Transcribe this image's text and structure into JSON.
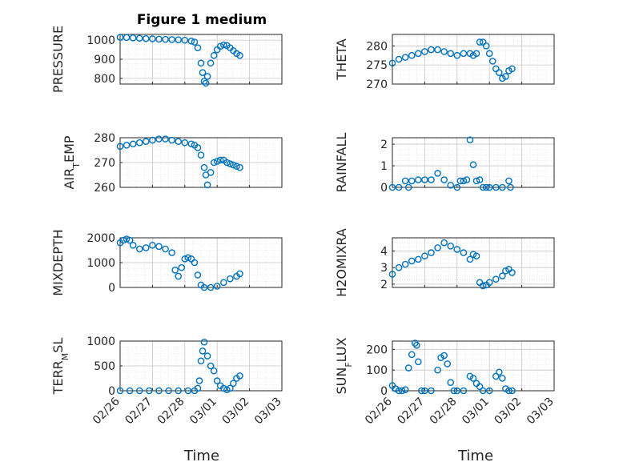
{
  "figure": {
    "title": "Figure 1 medium",
    "xlabel": "Time",
    "date_ticks": [
      "02/26",
      "02/27",
      "02/28",
      "03/01",
      "03/02",
      "03/03"
    ],
    "marker_color": "#0072BD",
    "grid_color": "#d9d9d9"
  },
  "chart_data": [
    {
      "type": "scatter",
      "ylabel": "PRESSURE",
      "ylim": [
        770,
        1030
      ],
      "yticks": [
        800,
        900,
        1000
      ],
      "x": [
        0,
        0.2,
        0.4,
        0.6,
        0.8,
        1.0,
        1.2,
        1.4,
        1.6,
        1.8,
        2.0,
        2.2,
        2.3,
        2.4,
        2.5,
        2.55,
        2.6,
        2.65,
        2.7,
        2.8,
        2.9,
        3.0,
        3.1,
        3.2,
        3.3,
        3.4,
        3.5,
        3.6,
        3.7
      ],
      "y": [
        1015,
        1014,
        1012,
        1010,
        1008,
        1007,
        1005,
        1004,
        1003,
        1002,
        1000,
        995,
        990,
        960,
        880,
        830,
        785,
        775,
        810,
        880,
        920,
        950,
        968,
        975,
        972,
        960,
        945,
        930,
        920
      ]
    },
    {
      "type": "scatter",
      "ylabel": "THETA",
      "ylim": [
        270,
        283
      ],
      "yticks": [
        270,
        275,
        280
      ],
      "x": [
        0,
        0.2,
        0.4,
        0.6,
        0.8,
        1.0,
        1.2,
        1.4,
        1.6,
        1.8,
        2.0,
        2.2,
        2.4,
        2.5,
        2.6,
        2.7,
        2.8,
        2.9,
        3.0,
        3.1,
        3.2,
        3.3,
        3.4,
        3.5,
        3.6,
        3.7
      ],
      "y": [
        275.5,
        276.5,
        277,
        277.5,
        278,
        278.5,
        279,
        279,
        278.5,
        278,
        277.5,
        278,
        278,
        277.5,
        278,
        281,
        281,
        280,
        278,
        276,
        274,
        273,
        271.5,
        272,
        273.5,
        274
      ]
    },
    {
      "type": "scatter",
      "ylabel": "AIR_TEMP",
      "ylim": [
        260,
        280
      ],
      "yticks": [
        260,
        270,
        280
      ],
      "x": [
        0,
        0.2,
        0.4,
        0.6,
        0.8,
        1.0,
        1.2,
        1.4,
        1.6,
        1.8,
        2.0,
        2.2,
        2.3,
        2.4,
        2.5,
        2.6,
        2.65,
        2.7,
        2.8,
        2.9,
        3.0,
        3.1,
        3.2,
        3.3,
        3.4,
        3.5,
        3.6,
        3.7
      ],
      "y": [
        276.5,
        277,
        277.5,
        278,
        278.5,
        279,
        279.5,
        279.5,
        279,
        278.5,
        278,
        277.5,
        277,
        276,
        273,
        268,
        265,
        261,
        266,
        270,
        270.5,
        271,
        271,
        270,
        269.5,
        269,
        268.5,
        268
      ]
    },
    {
      "type": "scatter",
      "ylabel": "RAINFALL",
      "ylim": [
        0,
        2.3
      ],
      "yticks": [
        0,
        1,
        2
      ],
      "x": [
        0,
        0.2,
        0.4,
        0.5,
        0.6,
        0.8,
        1.0,
        1.2,
        1.4,
        1.6,
        1.8,
        2.0,
        2.1,
        2.2,
        2.3,
        2.4,
        2.5,
        2.6,
        2.7,
        2.8,
        2.9,
        3.0,
        3.2,
        3.4,
        3.6,
        3.65
      ],
      "y": [
        0,
        0,
        0.3,
        0,
        0.3,
        0.35,
        0.35,
        0.35,
        0.65,
        0.35,
        0.1,
        0,
        0.3,
        0.3,
        0.35,
        2.2,
        1.05,
        0.3,
        0.35,
        0,
        0,
        0,
        0,
        0,
        0.3,
        0
      ]
    },
    {
      "type": "scatter",
      "ylabel": "MIXDEPTH",
      "ylim": [
        0,
        2000
      ],
      "yticks": [
        0,
        1000,
        2000
      ],
      "x": [
        0,
        0.1,
        0.2,
        0.3,
        0.4,
        0.6,
        0.8,
        1.0,
        1.2,
        1.4,
        1.6,
        1.7,
        1.8,
        1.9,
        2.0,
        2.1,
        2.2,
        2.3,
        2.4,
        2.5,
        2.6,
        2.8,
        3.0,
        3.2,
        3.4,
        3.6,
        3.7
      ],
      "y": [
        1800,
        1900,
        1950,
        1900,
        1700,
        1550,
        1600,
        1700,
        1650,
        1550,
        1400,
        700,
        450,
        800,
        1150,
        1200,
        1150,
        1000,
        500,
        100,
        0,
        0,
        50,
        200,
        350,
        450,
        550
      ]
    },
    {
      "type": "scatter",
      "ylabel": "H2OMIXRA",
      "ylim": [
        1.8,
        4.8
      ],
      "yticks": [
        2,
        3,
        4
      ],
      "x": [
        0,
        0.2,
        0.4,
        0.6,
        0.8,
        1.0,
        1.2,
        1.4,
        1.6,
        1.8,
        2.0,
        2.2,
        2.4,
        2.5,
        2.6,
        2.7,
        2.8,
        2.9,
        3.0,
        3.2,
        3.4,
        3.5,
        3.6,
        3.7
      ],
      "y": [
        2.6,
        3.0,
        3.2,
        3.4,
        3.5,
        3.7,
        3.9,
        4.2,
        4.5,
        4.3,
        4.1,
        3.9,
        3.5,
        3.8,
        3.7,
        2.1,
        1.9,
        1.95,
        2.1,
        2.3,
        2.5,
        2.8,
        2.9,
        2.7
      ]
    },
    {
      "type": "scatter",
      "ylabel": "TERR_MSL",
      "ylim": [
        0,
        1000
      ],
      "yticks": [
        0,
        500,
        1000
      ],
      "x": [
        0,
        0.3,
        0.6,
        0.9,
        1.2,
        1.5,
        1.8,
        2.1,
        2.3,
        2.4,
        2.45,
        2.5,
        2.55,
        2.6,
        2.7,
        2.8,
        2.9,
        3.0,
        3.1,
        3.2,
        3.3,
        3.4,
        3.5,
        3.6,
        3.7
      ],
      "y": [
        0,
        0,
        0,
        0,
        0,
        0,
        0,
        0,
        0,
        50,
        200,
        600,
        800,
        980,
        700,
        500,
        400,
        200,
        100,
        50,
        20,
        50,
        150,
        250,
        300
      ]
    },
    {
      "type": "scatter",
      "ylabel": "SUN_FLUX",
      "ylim": [
        0,
        240
      ],
      "yticks": [
        0,
        100,
        200
      ],
      "x": [
        0,
        0.1,
        0.2,
        0.3,
        0.4,
        0.5,
        0.6,
        0.7,
        0.75,
        0.8,
        0.9,
        1.0,
        1.2,
        1.4,
        1.5,
        1.6,
        1.7,
        1.8,
        1.9,
        2.0,
        2.2,
        2.4,
        2.5,
        2.6,
        2.7,
        2.8,
        3.0,
        3.2,
        3.3,
        3.4,
        3.5,
        3.6,
        3.7
      ],
      "y": [
        25,
        10,
        0,
        0,
        5,
        110,
        175,
        230,
        220,
        140,
        0,
        0,
        0,
        100,
        160,
        170,
        130,
        40,
        0,
        0,
        0,
        70,
        60,
        35,
        20,
        0,
        0,
        70,
        90,
        60,
        10,
        0,
        0
      ]
    }
  ]
}
